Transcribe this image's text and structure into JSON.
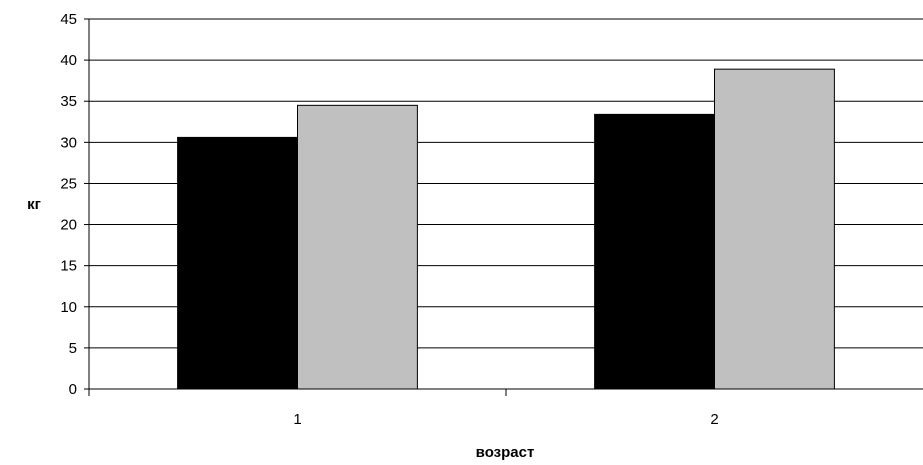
{
  "chart_data": {
    "type": "bar",
    "title": "",
    "xlabel": "возраст",
    "ylabel": "кг",
    "categories": [
      "1",
      "2"
    ],
    "ylim": [
      0,
      45
    ],
    "yticks": [
      0,
      5,
      10,
      15,
      20,
      25,
      30,
      35,
      40,
      45
    ],
    "grid": true,
    "legend": "none",
    "series": [
      {
        "values": [
          30.6,
          33.4
        ],
        "color": "#000000"
      },
      {
        "values": [
          34.5,
          38.9
        ],
        "color": "#C0C0C0"
      }
    ]
  }
}
